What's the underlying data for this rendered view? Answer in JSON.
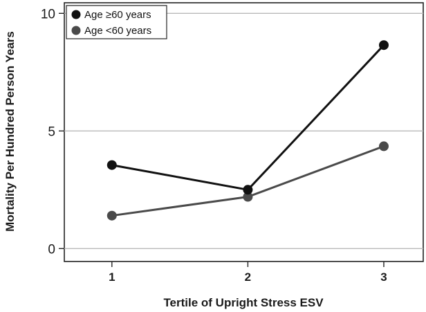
{
  "chart_data": {
    "type": "line",
    "xlabel": "Tertile of Upright Stress ESV",
    "ylabel": "Mortality Per Hundred Person Years",
    "x": [
      1,
      2,
      3
    ],
    "x_ticks": [
      "1",
      "2",
      "3"
    ],
    "xlim": [
      0.65,
      3.29
    ],
    "ylim": [
      -0.55,
      10.45
    ],
    "y_ticks": [
      "0",
      "5",
      "10"
    ],
    "y_tick_values": [
      0,
      5,
      10
    ],
    "grid": "horizontal",
    "legend_position": "top-left",
    "series": [
      {
        "name": "Age ≥60 years",
        "values": [
          3.55,
          2.5,
          8.65
        ],
        "color": "#111111"
      },
      {
        "name": "Age <60 years",
        "values": [
          1.4,
          2.2,
          4.35
        ],
        "color": "#4a4a4a"
      }
    ]
  }
}
